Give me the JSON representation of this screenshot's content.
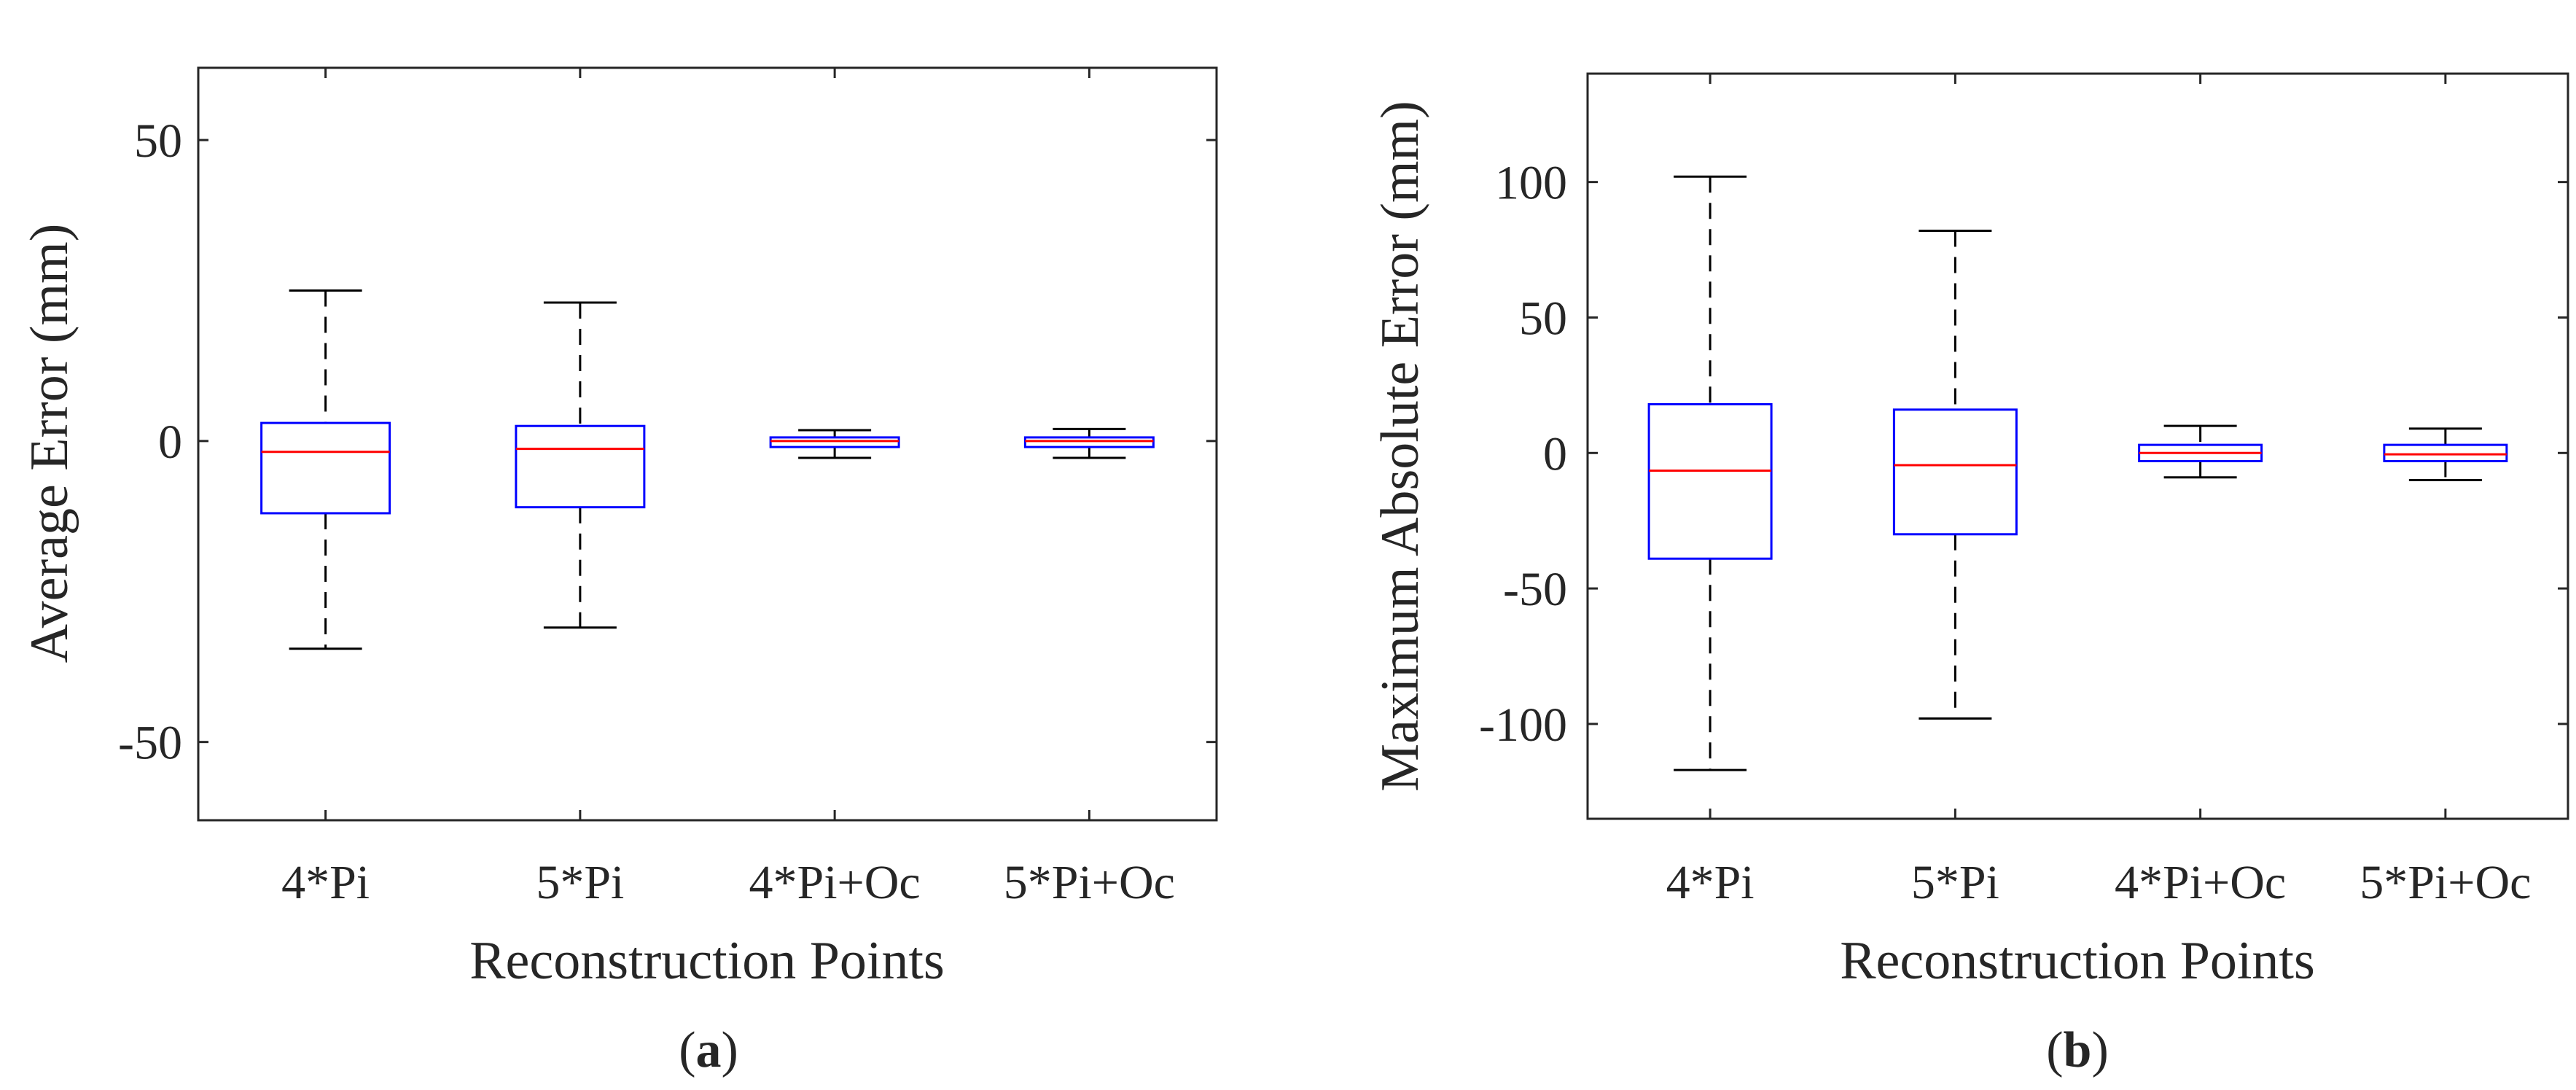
{
  "chart_data": [
    {
      "type": "boxplot",
      "panel_label": "a",
      "title": "",
      "xlabel": "Reconstruction Points",
      "ylabel": "Average Error (mm)",
      "ylim": [
        -63,
        62
      ],
      "yticks": [
        -50,
        0,
        50
      ],
      "ytick_labels": [
        "-50",
        "0",
        "50"
      ],
      "categories": [
        "4*Pi",
        "5*Pi",
        "4*Pi+Oc",
        "5*Pi+Oc"
      ],
      "boxes": [
        {
          "label": "4*Pi",
          "min": -34.5,
          "q1": -12,
          "median": -1.8,
          "q3": 3,
          "max": 25
        },
        {
          "label": "5*Pi",
          "min": -31,
          "q1": -11,
          "median": -1.3,
          "q3": 2.5,
          "max": 23
        },
        {
          "label": "4*Pi+Oc",
          "min": -2.8,
          "q1": -1,
          "median": 0,
          "q3": 0.6,
          "max": 1.8
        },
        {
          "label": "5*Pi+Oc",
          "min": -2.8,
          "q1": -1,
          "median": 0,
          "q3": 0.6,
          "max": 2
        }
      ],
      "colors": {
        "box": "#0000ff",
        "median": "#ff0000",
        "whisker": "#000000",
        "axes": "#262626"
      }
    },
    {
      "type": "boxplot",
      "panel_label": "b",
      "title": "",
      "xlabel": "Reconstruction Points",
      "ylabel": "Maximum Absolute Error (mm)",
      "ylim": [
        -135,
        140
      ],
      "yticks": [
        -100,
        -50,
        0,
        50,
        100
      ],
      "ytick_labels": [
        "-100",
        "-50",
        "0",
        "50",
        "100"
      ],
      "categories": [
        "4*Pi",
        "5*Pi",
        "4*Pi+Oc",
        "5*Pi+Oc"
      ],
      "boxes": [
        {
          "label": "4*Pi",
          "min": -117,
          "q1": -39,
          "median": -6.5,
          "q3": 18,
          "max": 102
        },
        {
          "label": "5*Pi",
          "min": -98,
          "q1": -30,
          "median": -4.5,
          "q3": 16,
          "max": 82
        },
        {
          "label": "4*Pi+Oc",
          "min": -9,
          "q1": -3,
          "median": 0,
          "q3": 3,
          "max": 10
        },
        {
          "label": "5*Pi+Oc",
          "min": -10,
          "q1": -3,
          "median": -0.5,
          "q3": 3,
          "max": 9
        }
      ],
      "colors": {
        "box": "#0000ff",
        "median": "#ff0000",
        "whisker": "#000000",
        "axes": "#262626"
      }
    }
  ]
}
